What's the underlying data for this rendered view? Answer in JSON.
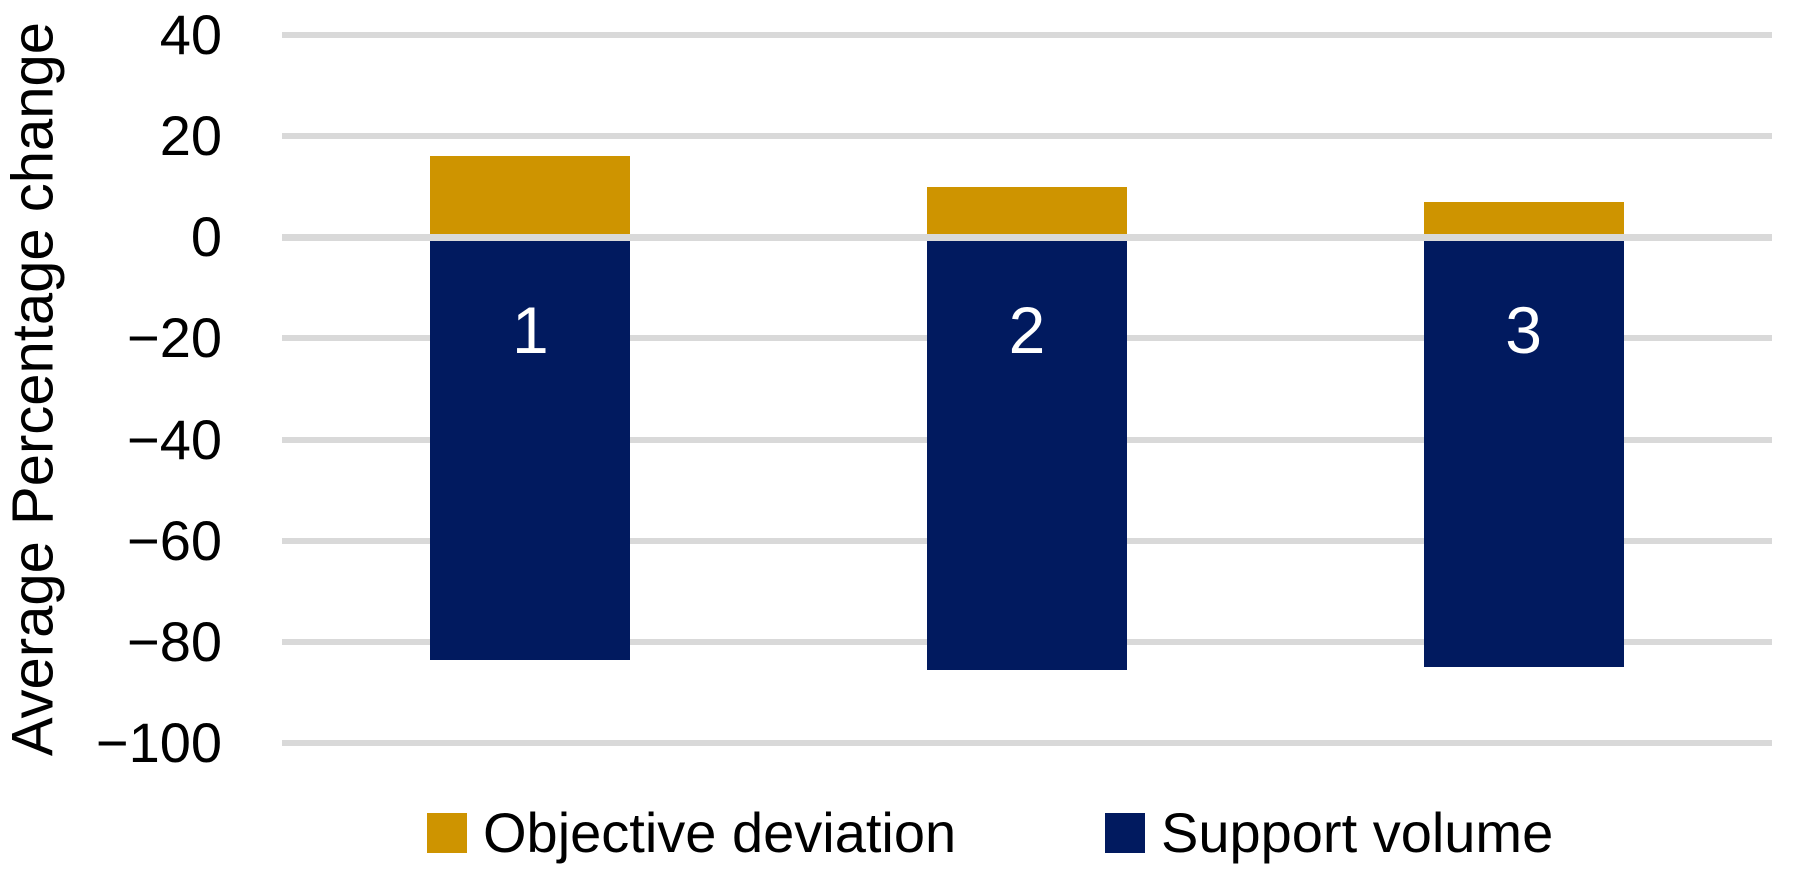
{
  "chart_data": {
    "type": "bar",
    "stacked": true,
    "orientation": "vertical",
    "categories": [
      "1",
      "2",
      "3"
    ],
    "series": [
      {
        "name": "Objective deviation",
        "color": "#CE9400",
        "values": [
          16,
          10,
          7
        ]
      },
      {
        "name": "Support volume",
        "color": "#011A5F",
        "values": [
          -83.5,
          -85.5,
          -85
        ]
      }
    ],
    "title": "",
    "xlabel": "",
    "ylabel": "Average Percentage change",
    "ylim": [
      -100,
      40
    ],
    "yticks": [
      40,
      20,
      0,
      -20,
      -40,
      -60,
      -80,
      -100
    ],
    "grid": true,
    "gridline_color": "#D9D9D9",
    "zero_line_drawn_over_bars": true,
    "bar_label_color": "#FFFFFF",
    "legend_position": "bottom"
  },
  "yaxis": {
    "label": "Average Percentage change",
    "tick_labels": [
      "40",
      "20",
      "0",
      "−20",
      "−40",
      "−60",
      "−80",
      "−100"
    ]
  },
  "legend": {
    "items": [
      {
        "label": "Objective deviation",
        "swatch_color": "#CE9400"
      },
      {
        "label": "Support volume",
        "swatch_color": "#011A5F"
      }
    ]
  }
}
